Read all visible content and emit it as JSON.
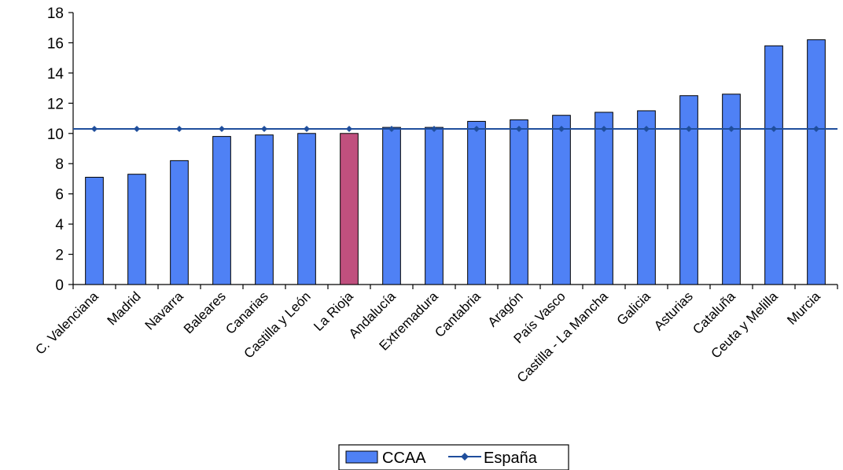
{
  "chart_data": {
    "type": "bar",
    "title": "",
    "xlabel": "",
    "ylabel": "",
    "ylim": [
      0,
      18
    ],
    "yticks": [
      0,
      2,
      4,
      6,
      8,
      10,
      12,
      14,
      16,
      18
    ],
    "categories": [
      "C. Valenciana",
      "Madrid",
      "Navarra",
      "Baleares",
      "Canarias",
      "Castilla y León",
      "La Rioja",
      "Andalucía",
      "Extremadura",
      "Cantabria",
      "Aragón",
      "País Vasco",
      "Castilla - La Mancha",
      "Galicia",
      "Asturias",
      "Cataluña",
      "Ceuta y Melilla",
      "Murcia"
    ],
    "series": [
      {
        "name": "CCAA",
        "type": "bar",
        "color": "#4f81f5",
        "highlight_color": "#c0507e",
        "highlight_index": 6,
        "values": [
          7.1,
          7.3,
          8.2,
          9.8,
          9.9,
          10.0,
          10.0,
          10.4,
          10.4,
          10.8,
          10.9,
          11.2,
          11.4,
          11.5,
          12.5,
          12.6,
          15.8,
          16.2
        ]
      },
      {
        "name": "España",
        "type": "line",
        "color": "#1f4e9c",
        "values": [
          10.3,
          10.3,
          10.3,
          10.3,
          10.3,
          10.3,
          10.3,
          10.3,
          10.3,
          10.3,
          10.3,
          10.3,
          10.3,
          10.3,
          10.3,
          10.3,
          10.3,
          10.3
        ]
      }
    ],
    "grid": false,
    "legend": "bottom"
  }
}
